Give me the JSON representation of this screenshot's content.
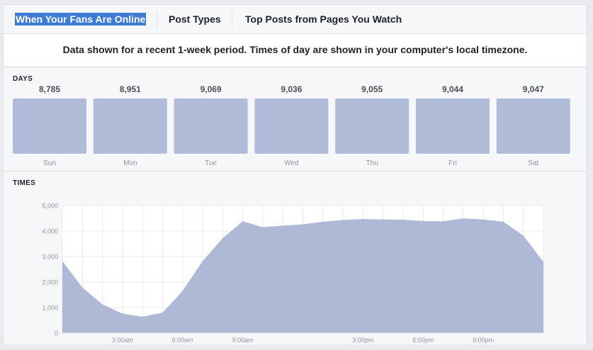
{
  "tabs": [
    {
      "label": "When Your Fans Are Online",
      "selected": true
    },
    {
      "label": "Post Types",
      "selected": false
    },
    {
      "label": "Top Posts from Pages You Watch",
      "selected": false
    }
  ],
  "notice": "Data shown for a recent 1-week period. Times of day are shown in your computer's local timezone.",
  "days_section": {
    "label": "DAYS"
  },
  "times_section": {
    "label": "TIMES"
  },
  "colors": {
    "bar_fill": "#b0bcd8",
    "area_fill": "#aeb9d6",
    "selected_tab": "#3d7bd4"
  },
  "chart_data": [
    {
      "type": "bar",
      "categories": [
        "Sun",
        "Mon",
        "Tue",
        "Wed",
        "Thu",
        "Fri",
        "Sat"
      ],
      "values": [
        8785,
        8951,
        9069,
        9036,
        9055,
        9044,
        9047
      ],
      "value_labels": [
        "8,785",
        "8,951",
        "9,069",
        "9,036",
        "9,055",
        "9,044",
        "9,047"
      ]
    },
    {
      "type": "area",
      "x": [
        0,
        1,
        2,
        3,
        4,
        5,
        6,
        7,
        8,
        9,
        10,
        11,
        12,
        13,
        14,
        15,
        16,
        17,
        18,
        19,
        20,
        21,
        22,
        23,
        24
      ],
      "values": [
        2820,
        1780,
        1120,
        760,
        640,
        800,
        1650,
        2820,
        3720,
        4380,
        4150,
        4210,
        4260,
        4360,
        4430,
        4470,
        4450,
        4440,
        4390,
        4380,
        4490,
        4450,
        4360,
        3820,
        2780
      ],
      "ylim": [
        0,
        5000
      ],
      "yticks": [
        0,
        1000,
        2000,
        3000,
        4000,
        5000
      ],
      "ytick_labels": [
        "0",
        "1,000",
        "2,000",
        "3,000",
        "4,000",
        "5,000"
      ],
      "xtick_positions": [
        3,
        6,
        9,
        15,
        18,
        21
      ],
      "xtick_labels": [
        "3:00am",
        "6:00am",
        "9:00am",
        "3:00pm",
        "6:00pm",
        "9:00pm"
      ],
      "grid": true
    }
  ]
}
